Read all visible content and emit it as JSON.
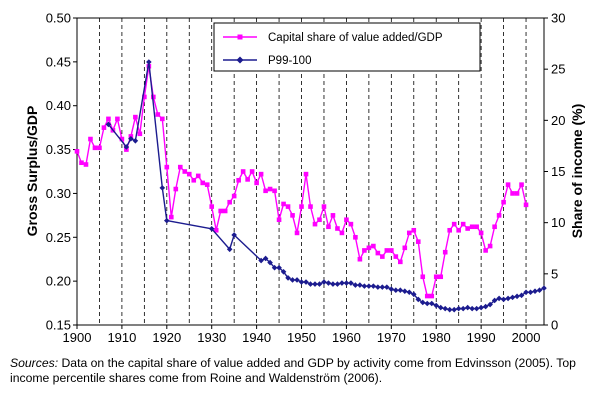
{
  "chart_data": {
    "type": "line",
    "title": "",
    "xlabel": "",
    "ylabel_left": "Gross Surplus/GDP",
    "ylabel_right": "Share of income (%)",
    "xlim": [
      1900,
      2004
    ],
    "ylim_left": [
      0.15,
      0.5
    ],
    "ylim_right": [
      0,
      30
    ],
    "x_ticks": [
      1900,
      1910,
      1920,
      1930,
      1940,
      1950,
      1960,
      1970,
      1980,
      1990,
      2000
    ],
    "y_left_ticks": [
      "0.15",
      "0.20",
      "0.25",
      "0.30",
      "0.35",
      "0.40",
      "0.45",
      "0.50"
    ],
    "y_right_ticks": [
      "0",
      "5",
      "10",
      "15",
      "20",
      "25",
      "30"
    ],
    "vertical_grid": "dashed",
    "legend_position": "top-center",
    "series": [
      {
        "name": "Capital share of value added/GDP",
        "axis": "left",
        "color": "#ff00ff",
        "marker": "square",
        "x": [
          1900,
          1901,
          1902,
          1903,
          1904,
          1905,
          1906,
          1907,
          1908,
          1909,
          1910,
          1911,
          1912,
          1913,
          1914,
          1915,
          1916,
          1917,
          1918,
          1919,
          1920,
          1921,
          1922,
          1923,
          1924,
          1925,
          1926,
          1927,
          1928,
          1929,
          1930,
          1931,
          1932,
          1933,
          1934,
          1935,
          1936,
          1937,
          1938,
          1939,
          1940,
          1941,
          1942,
          1943,
          1944,
          1945,
          1946,
          1947,
          1948,
          1949,
          1950,
          1951,
          1952,
          1953,
          1954,
          1955,
          1956,
          1957,
          1958,
          1959,
          1960,
          1961,
          1962,
          1963,
          1964,
          1965,
          1966,
          1967,
          1968,
          1969,
          1970,
          1971,
          1972,
          1973,
          1974,
          1975,
          1976,
          1977,
          1978,
          1979,
          1980,
          1981,
          1982,
          1983,
          1984,
          1985,
          1986,
          1987,
          1988,
          1989,
          1990,
          1991,
          1992,
          1993,
          1994,
          1995,
          1996,
          1997,
          1998,
          1999,
          2000
        ],
        "values": [
          0.348,
          0.335,
          0.333,
          0.362,
          0.352,
          0.352,
          0.375,
          0.385,
          0.372,
          0.385,
          0.362,
          0.35,
          0.365,
          0.387,
          0.368,
          0.41,
          0.445,
          0.41,
          0.39,
          0.385,
          0.33,
          0.273,
          0.305,
          0.33,
          0.325,
          0.322,
          0.315,
          0.32,
          0.312,
          0.31,
          0.285,
          0.258,
          0.28,
          0.28,
          0.29,
          0.297,
          0.315,
          0.325,
          0.316,
          0.325,
          0.312,
          0.322,
          0.303,
          0.305,
          0.303,
          0.27,
          0.288,
          0.285,
          0.275,
          0.255,
          0.285,
          0.322,
          0.285,
          0.265,
          0.27,
          0.285,
          0.262,
          0.275,
          0.26,
          0.255,
          0.27,
          0.265,
          0.25,
          0.225,
          0.235,
          0.238,
          0.24,
          0.232,
          0.228,
          0.235,
          0.235,
          0.228,
          0.222,
          0.238,
          0.255,
          0.258,
          0.245,
          0.205,
          0.183,
          0.183,
          0.205,
          0.205,
          0.233,
          0.258,
          0.265,
          0.258,
          0.265,
          0.26,
          0.262,
          0.262,
          0.255,
          0.235,
          0.24,
          0.262,
          0.275,
          0.29,
          0.31,
          0.3,
          0.3,
          0.31,
          0.287
        ]
      },
      {
        "name": "P99-100",
        "axis": "right",
        "color": "#1c1c8f",
        "marker": "diamond",
        "x": [
          1907,
          1911,
          1912,
          1913,
          1916,
          1919,
          1920,
          1930,
          1934,
          1935,
          1941,
          1942,
          1943,
          1944,
          1945,
          1946,
          1947,
          1948,
          1949,
          1950,
          1951,
          1952,
          1953,
          1954,
          1955,
          1956,
          1957,
          1958,
          1959,
          1960,
          1961,
          1962,
          1963,
          1964,
          1965,
          1966,
          1967,
          1968,
          1969,
          1970,
          1971,
          1972,
          1973,
          1974,
          1975,
          1976,
          1977,
          1978,
          1979,
          1980,
          1981,
          1982,
          1983,
          1984,
          1985,
          1986,
          1987,
          1988,
          1989,
          1990,
          1991,
          1992,
          1993,
          1994,
          1995,
          1996,
          1997,
          1998,
          1999,
          2000,
          2001,
          2002,
          2003,
          2004
        ],
        "values": [
          19.6,
          17.4,
          18.2,
          18.0,
          25.7,
          13.4,
          10.2,
          9.4,
          7.4,
          8.8,
          6.3,
          6.5,
          6.1,
          5.6,
          5.6,
          5.2,
          4.6,
          4.4,
          4.4,
          4.2,
          4.2,
          4.0,
          4.0,
          4.0,
          4.2,
          4.1,
          4.0,
          4.0,
          4.1,
          4.1,
          4.1,
          3.9,
          3.9,
          3.8,
          3.8,
          3.8,
          3.7,
          3.7,
          3.7,
          3.5,
          3.4,
          3.4,
          3.3,
          3.2,
          3.0,
          2.5,
          2.2,
          2.1,
          2.1,
          1.9,
          1.7,
          1.6,
          1.5,
          1.5,
          1.6,
          1.6,
          1.7,
          1.6,
          1.6,
          1.7,
          1.8,
          2.0,
          2.4,
          2.6,
          2.5,
          2.6,
          2.7,
          2.8,
          2.9,
          3.2,
          3.2,
          3.3,
          3.4,
          3.6
        ]
      }
    ],
    "caption_lead": "Sources:",
    "caption_text": " Data on the capital share of value added and GDP by activity come from Edvinsson (2005). Top income percentile shares come from Roine and Waldenström (2006)."
  }
}
